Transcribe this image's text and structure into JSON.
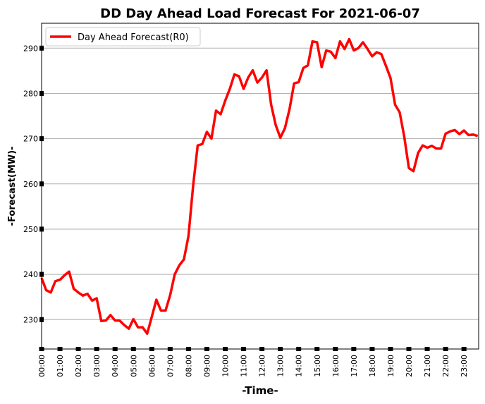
{
  "chart_data": {
    "type": "line",
    "title": "DD Day Ahead Load Forecast For 2021-06-07",
    "xlabel": "-Time-",
    "ylabel": "-Forecast(MW)-",
    "ylim": [
      223.5,
      295.5
    ],
    "y_ticks": [
      230,
      240,
      250,
      260,
      270,
      280,
      290
    ],
    "x_ticks": [
      "00:00",
      "01:00",
      "02:00",
      "03:00",
      "04:00",
      "05:00",
      "06:00",
      "07:00",
      "08:00",
      "09:00",
      "10:00",
      "11:00",
      "12:00",
      "13:00",
      "14:00",
      "15:00",
      "16:00",
      "17:00",
      "18:00",
      "19:00",
      "20:00",
      "21:00",
      "22:00",
      "23:00"
    ],
    "grid": "horizontal",
    "legend_position": "top-left",
    "series": [
      {
        "name": "Day Ahead Forecast(R0)",
        "color": "#ff0000",
        "values": [
          239.2,
          236.5,
          236.0,
          238.5,
          238.8,
          239.8,
          240.6,
          236.8,
          236.0,
          235.3,
          235.7,
          234.2,
          234.7,
          229.7,
          229.8,
          231.0,
          229.8,
          229.8,
          228.8,
          228.0,
          230.1,
          228.3,
          228.3,
          226.9,
          230.6,
          234.4,
          232.0,
          232.0,
          235.4,
          240.0,
          242.0,
          243.3,
          248.5,
          259.5,
          268.5,
          268.8,
          271.5,
          270.0,
          276.2,
          275.4,
          278.4,
          281.0,
          284.2,
          283.8,
          281.0,
          283.5,
          285.1,
          282.4,
          283.5,
          285.1,
          277.5,
          273.0,
          270.2,
          272.3,
          276.5,
          282.2,
          282.5,
          285.6,
          286.2,
          291.5,
          291.3,
          285.8,
          289.5,
          289.2,
          287.8,
          291.5,
          289.8,
          292.0,
          289.5,
          290.0,
          291.3,
          289.8,
          288.2,
          289.1,
          288.7,
          286.1,
          283.4,
          277.5,
          275.8,
          270.4,
          263.5,
          262.8,
          266.8,
          268.5,
          268.0,
          268.4,
          267.8,
          267.8,
          271.1,
          271.6,
          271.9,
          271.0,
          271.8,
          270.8,
          270.9,
          270.6
        ]
      }
    ]
  }
}
